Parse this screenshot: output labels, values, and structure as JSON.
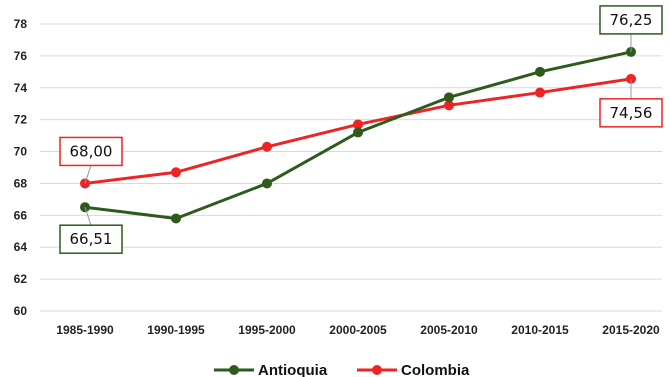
{
  "chart_data": {
    "type": "line",
    "categories": [
      "1985-1990",
      "1990-1995",
      "1995-2000",
      "2000-2005",
      "2005-2010",
      "2010-2015",
      "2015-2020"
    ],
    "series": [
      {
        "name": "Antioquia",
        "color": "#2e5a1c",
        "values": [
          66.51,
          65.8,
          68.0,
          71.2,
          73.4,
          75.0,
          76.25
        ]
      },
      {
        "name": "Colombia",
        "color": "#ee2424",
        "values": [
          68.0,
          68.7,
          70.3,
          71.7,
          72.9,
          73.7,
          74.56
        ]
      }
    ],
    "y_ticks": [
      60,
      62,
      64,
      66,
      68,
      70,
      72,
      74,
      76,
      78
    ],
    "ylim": [
      60,
      78
    ],
    "grid": true,
    "legend": "bottom",
    "annotations": [
      {
        "series": 0,
        "index": 0,
        "text": "66,51",
        "placement": "below"
      },
      {
        "series": 1,
        "index": 0,
        "text": "68,00",
        "placement": "above"
      },
      {
        "series": 0,
        "index": 6,
        "text": "76,25",
        "placement": "above"
      },
      {
        "series": 1,
        "index": 6,
        "text": "74,56",
        "placement": "below"
      }
    ]
  }
}
